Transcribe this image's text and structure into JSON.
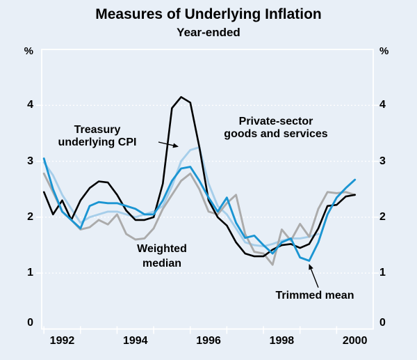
{
  "header": {
    "title": "Measures of Underlying Inflation",
    "subtitle": "Year-ended"
  },
  "axes": {
    "left_unit": "%",
    "right_unit": "%",
    "y_tick_labels": [
      "4",
      "3",
      "2",
      "1",
      "0"
    ],
    "x_tick_labels": [
      "1992",
      "1994",
      "1996",
      "1998",
      "2000"
    ]
  },
  "annotations": {
    "treasury": {
      "line1": "Treasury",
      "line2": "underlying CPI"
    },
    "private_sector": {
      "line1": "Private-sector",
      "line2": "goods and services"
    },
    "weighted_median": {
      "line1": "Weighted",
      "line2": "median"
    },
    "trimmed_mean": {
      "text": "Trimmed mean"
    }
  },
  "colors": {
    "background": "#e8eff7",
    "frame": "#ffffff",
    "gridline": "#ffffff",
    "trimmed_mean": "#1b95d2",
    "treasury_underlying": "#a6ceea",
    "weighted_median": "#ababab",
    "private_sector": "#000000"
  },
  "chart_data": {
    "type": "line",
    "title": "Measures of Underlying Inflation",
    "subtitle": "Year-ended",
    "ylabel": "%",
    "ylim": [
      0,
      5
    ],
    "xlim": [
      1991.94,
      2001.0
    ],
    "y_ticks": [
      4,
      3,
      2,
      1,
      0
    ],
    "x_tick_years": [
      1992,
      1993,
      1994,
      1995,
      1996,
      1997,
      1998,
      1999,
      2000
    ],
    "x_label_years": [
      1992,
      1994,
      1996,
      1998,
      2000
    ],
    "grid": "horizontal-dotted-white",
    "legend": "inline-annotations",
    "x_start": 1992.0,
    "x_step": 0.25,
    "x_note": "quarterly observations, Dec-1991 quarter plotted at 1992.0",
    "series": [
      {
        "name": "Treasury underlying CPI",
        "color_key": "treasury_underlying",
        "values": [
          2.98,
          2.75,
          2.4,
          2.15,
          1.9,
          2.0,
          2.05,
          2.1,
          2.1,
          2.05,
          2.0,
          2.05,
          2.1,
          2.2,
          2.55,
          3.0,
          3.2,
          3.25,
          2.6,
          2.2,
          2.05,
          1.8,
          1.55,
          1.5,
          1.48,
          1.52,
          1.58,
          1.62,
          1.62,
          1.65,
          1.7
        ]
      },
      {
        "name": "Weighted median",
        "color_key": "weighted_median",
        "values": [
          2.78,
          2.45,
          2.1,
          1.95,
          1.78,
          1.82,
          1.95,
          1.87,
          2.05,
          1.7,
          1.6,
          1.62,
          1.8,
          2.15,
          2.4,
          2.65,
          2.78,
          2.5,
          2.1,
          2.05,
          2.25,
          2.4,
          1.7,
          1.38,
          1.35,
          1.15,
          1.78,
          1.58,
          1.88,
          1.65,
          2.15,
          2.45,
          2.43,
          2.45,
          2.4
        ]
      },
      {
        "name": "Private-sector goods and services",
        "color_key": "private_sector",
        "values": [
          2.45,
          2.05,
          2.3,
          1.95,
          2.3,
          2.52,
          2.64,
          2.62,
          2.4,
          2.12,
          1.95,
          1.95,
          2.0,
          2.6,
          3.95,
          4.15,
          4.05,
          3.25,
          2.3,
          2.0,
          1.85,
          1.55,
          1.35,
          1.3,
          1.3,
          1.42,
          1.5,
          1.52,
          1.45,
          1.52,
          1.8,
          2.2,
          2.22,
          2.37,
          2.4
        ]
      },
      {
        "name": "Trimmed mean",
        "color_key": "trimmed_mean",
        "values": [
          3.05,
          2.5,
          2.1,
          1.95,
          1.8,
          2.2,
          2.27,
          2.25,
          2.25,
          2.2,
          2.15,
          2.05,
          2.05,
          2.3,
          2.65,
          2.87,
          2.9,
          2.65,
          2.35,
          2.1,
          2.35,
          1.9,
          1.63,
          1.67,
          1.5,
          1.35,
          1.55,
          1.62,
          1.28,
          1.22,
          1.55,
          2.05,
          2.35,
          2.52,
          2.67
        ]
      }
    ]
  }
}
